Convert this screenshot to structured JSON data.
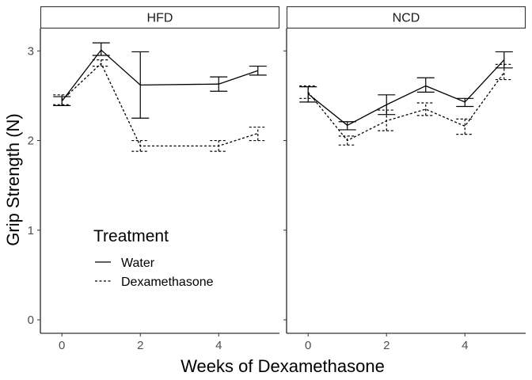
{
  "chart_data": {
    "type": "line",
    "xlabel": "Weeks of Dexamethasone",
    "ylabel": "Grip Strength (N)",
    "xlim": [
      -0.55,
      5.55
    ],
    "ylim": [
      -0.15,
      3.25
    ],
    "x_ticks": [
      0,
      2,
      4
    ],
    "y_ticks": [
      0,
      1,
      2,
      3
    ],
    "grid": false,
    "legend": {
      "title": "Treatment",
      "placement": "inside-left",
      "entries": [
        {
          "label": "Water",
          "linetype": "solid"
        },
        {
          "label": "Dexamethasone",
          "linetype": "dashed"
        }
      ]
    },
    "facets": [
      {
        "label": "HFD",
        "series": [
          {
            "name": "Water",
            "linetype": "solid",
            "points": [
              {
                "x": 0,
                "y": 2.44,
                "lo": 2.39,
                "hi": 2.49
              },
              {
                "x": 1,
                "y": 3.01,
                "lo": 2.95,
                "hi": 3.09
              },
              {
                "x": 2,
                "y": 2.62,
                "lo": 2.25,
                "hi": 2.99
              },
              {
                "x": 4,
                "y": 2.63,
                "lo": 2.55,
                "hi": 2.71
              },
              {
                "x": 5,
                "y": 2.78,
                "lo": 2.73,
                "hi": 2.83
              }
            ]
          },
          {
            "name": "Dexamethasone",
            "linetype": "dashed",
            "points": [
              {
                "x": 0,
                "y": 2.45,
                "lo": 2.4,
                "hi": 2.51
              },
              {
                "x": 1,
                "y": 2.86,
                "lo": 2.83,
                "hi": 2.9
              },
              {
                "x": 2,
                "y": 1.94,
                "lo": 1.88,
                "hi": 2.0
              },
              {
                "x": 4,
                "y": 1.94,
                "lo": 1.88,
                "hi": 2.0
              },
              {
                "x": 5,
                "y": 2.08,
                "lo": 2.0,
                "hi": 2.15
              }
            ]
          }
        ]
      },
      {
        "label": "NCD",
        "series": [
          {
            "name": "Water",
            "linetype": "solid",
            "points": [
              {
                "x": 0,
                "y": 2.52,
                "lo": 2.43,
                "hi": 2.6
              },
              {
                "x": 1,
                "y": 2.17,
                "lo": 2.12,
                "hi": 2.21
              },
              {
                "x": 2,
                "y": 2.4,
                "lo": 2.29,
                "hi": 2.51
              },
              {
                "x": 3,
                "y": 2.61,
                "lo": 2.54,
                "hi": 2.7
              },
              {
                "x": 4,
                "y": 2.43,
                "lo": 2.38,
                "hi": 2.47
              },
              {
                "x": 5,
                "y": 2.9,
                "lo": 2.81,
                "hi": 2.99
              }
            ]
          },
          {
            "name": "Dexamethasone",
            "linetype": "dashed",
            "points": [
              {
                "x": 0,
                "y": 2.54,
                "lo": 2.47,
                "hi": 2.61
              },
              {
                "x": 1,
                "y": 2.0,
                "lo": 1.95,
                "hi": 2.05
              },
              {
                "x": 2,
                "y": 2.22,
                "lo": 2.11,
                "hi": 2.34
              },
              {
                "x": 3,
                "y": 2.35,
                "lo": 2.28,
                "hi": 2.42
              },
              {
                "x": 4,
                "y": 2.16,
                "lo": 2.07,
                "hi": 2.24
              },
              {
                "x": 5,
                "y": 2.76,
                "lo": 2.68,
                "hi": 2.85
              }
            ]
          }
        ]
      }
    ]
  }
}
